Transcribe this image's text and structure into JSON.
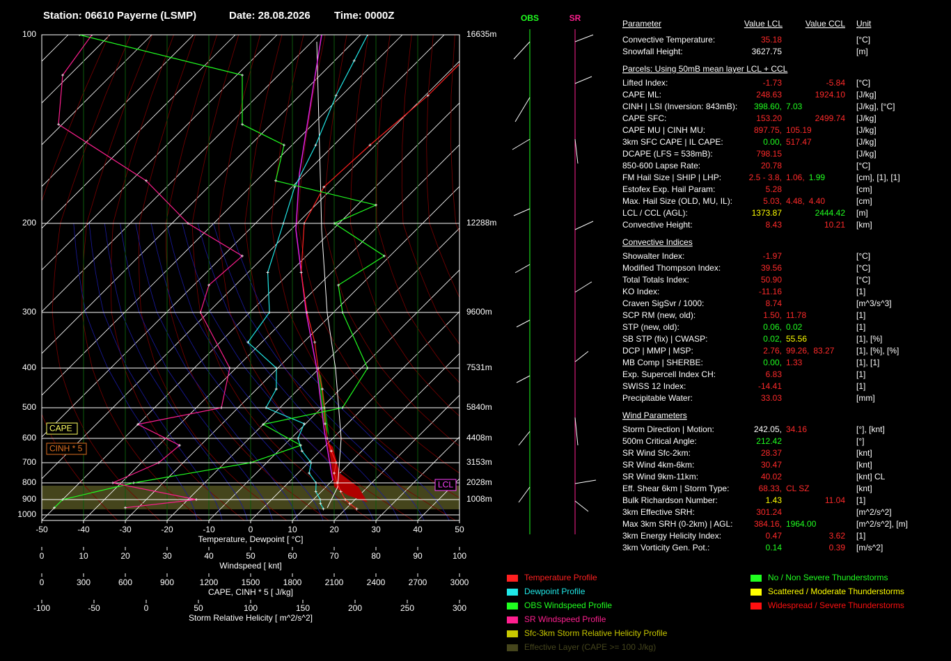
{
  "header": {
    "station": "Station: 06610 Payerne (LSMP)",
    "date": "Date: 28.08.2026",
    "time": "Time: 0000Z"
  },
  "chart_data": {
    "type": "skewt",
    "xlabel": "Temperature, Dewpoint  [ °C]",
    "xlim": [
      -50,
      50
    ],
    "xticks": [
      -50,
      -40,
      -30,
      -20,
      -10,
      0,
      10,
      20,
      30,
      40,
      50
    ],
    "ylim": [
      1000,
      100
    ],
    "yticks": [
      100,
      200,
      300,
      400,
      500,
      600,
      700,
      800,
      900,
      1000
    ],
    "height_labels": [
      {
        "value": 100,
        "label": "16635m"
      },
      {
        "value": 200,
        "label": "12288m"
      },
      {
        "value": 300,
        "label": "9600m"
      },
      {
        "value": 400,
        "label": "7531m"
      },
      {
        "value": 500,
        "label": "5840m"
      },
      {
        "value": 600,
        "label": "4408m"
      },
      {
        "value": 700,
        "label": "3153m"
      },
      {
        "value": 800,
        "label": "2028m"
      },
      {
        "value": 900,
        "label": "1008m"
      }
    ],
    "series": [
      {
        "name": "Temperature Profile",
        "color": "#ff2020",
        "pressure": [
          960,
          925,
          900,
          850,
          800,
          750,
          700,
          650,
          600,
          550,
          500,
          450,
          400,
          350,
          300,
          250,
          200,
          175,
          150,
          125,
          110,
          100
        ],
        "values": [
          24,
          21,
          19,
          16,
          13,
          10,
          8,
          4,
          0,
          -4,
          -8,
          -13,
          -19,
          -26,
          -35,
          -46,
          -57,
          -61,
          -60,
          -58,
          -58,
          -57
        ]
      },
      {
        "name": "Dewpoint Profile",
        "color": "#20e8e8",
        "pressure": [
          960,
          925,
          900,
          850,
          800,
          750,
          700,
          650,
          600,
          550,
          500,
          450,
          400,
          350,
          300,
          250,
          200,
          175,
          150,
          125,
          110,
          100
        ],
        "values": [
          16,
          14,
          13,
          10,
          8,
          4,
          2,
          -3,
          -7,
          -9,
          -22,
          -24,
          -29,
          -42,
          -44,
          -54,
          -62,
          -68,
          -73,
          -80,
          -84,
          -87
        ]
      },
      {
        "name": "OBS Windspeed Profile",
        "color": "#20ff20",
        "axis": "windspeed",
        "pressure": [
          100,
          116,
          139,
          150,
          171,
          187,
          200,
          232,
          265,
          300,
          400,
          500,
          552,
          627,
          700,
          800,
          900,
          952
        ],
        "values": [
          9,
          48,
          48,
          58,
          56,
          80,
          70,
          82,
          71,
          72,
          78,
          72,
          53,
          62,
          50,
          22,
          5,
          3
        ]
      },
      {
        "name": "SR Windspeed Profile",
        "color": "#ff1f8f",
        "axis": "windspeed",
        "pressure": [
          100,
          116,
          139,
          171,
          200,
          232,
          265,
          300,
          400,
          500,
          552,
          627,
          700,
          800,
          900,
          952
        ],
        "values": [
          12,
          5,
          4,
          25,
          35,
          48,
          40,
          38,
          45,
          43,
          23,
          33,
          28,
          17,
          37,
          20
        ]
      }
    ],
    "legend_extra": [
      {
        "name": "Sfc-3km Storm Relative Helicity Profile",
        "color": "#c8c800"
      },
      {
        "name": "Effective Layer (CAPE >= 100 J/kg)",
        "color": "#45451c"
      }
    ],
    "severity_legend": [
      {
        "name": "No / Non Severe Thunderstorms",
        "color": "#20ff20"
      },
      {
        "name": "Scattered / Moderate Thunderstorms",
        "color": "#ffff00"
      },
      {
        "name": "Widespread / Severe Thunderstorms",
        "color": "#ff1010"
      }
    ],
    "windspeed_axis": {
      "label": "Windspeed  [ knt]",
      "lim": [
        0,
        100
      ],
      "ticks": [
        0,
        10,
        20,
        30,
        40,
        50,
        60,
        70,
        80,
        90,
        100
      ]
    },
    "cape_axis": {
      "label": "CAPE, CINH * 5  [ J/kg]",
      "lim": [
        0,
        3000
      ],
      "ticks": [
        0,
        300,
        600,
        900,
        1200,
        1500,
        1800,
        2100,
        2400,
        2700,
        3000
      ]
    },
    "srh_axis": {
      "label": "Storm Relative Helicity  [ m^2/s^2]",
      "lim": [
        -100,
        300
      ],
      "ticks": [
        -100,
        -50,
        0,
        50,
        100,
        150,
        200,
        250,
        300
      ]
    },
    "annotations": {
      "cape": "CAPE",
      "cinh": "CINH * 5",
      "lcl": "LCL"
    }
  },
  "barbs": {
    "obs": "OBS",
    "sr": "SR"
  },
  "table": {
    "header": [
      "Parameter",
      "Value LCL",
      "Value CCL",
      "Unit"
    ],
    "sections": [
      {
        "rows": [
          {
            "label": "Convective Temperature:",
            "lcl": [
              {
                "text": "35.18",
                "color": "#ff2a2a"
              }
            ],
            "unit": "[°C]"
          },
          {
            "label": "Snowfall Height:",
            "lcl": [
              {
                "text": "3627.75",
                "color": "#ffffff"
              }
            ],
            "unit": "[m]"
          }
        ]
      },
      {
        "title": "Parcels: Using 50mB mean layer LCL + CCL",
        "rows": [
          {
            "label": "Lifted Index:",
            "lcl": [
              {
                "text": "-1.73",
                "color": "#ff2a2a"
              }
            ],
            "ccl": [
              {
                "text": "-5.84",
                "color": "#ff2a2a"
              }
            ],
            "unit": "[°C]"
          },
          {
            "label": "CAPE ML:",
            "lcl": [
              {
                "text": "248.63",
                "color": "#ff2a2a"
              }
            ],
            "ccl": [
              {
                "text": "1924.10",
                "color": "#ff2a2a"
              }
            ],
            "unit": "[J/kg]"
          },
          {
            "label": "CINH | LSI (Inversion: 843mB):",
            "lcl": [
              {
                "text": "398.60,",
                "color": "#20ff20"
              },
              {
                "text": "7.03",
                "color": "#20ff20"
              }
            ],
            "unit": "[J/kg], [°C]"
          },
          {
            "label": "CAPE SFC:",
            "lcl": [
              {
                "text": "153.20",
                "color": "#ff2a2a"
              }
            ],
            "ccl": [
              {
                "text": "2499.74",
                "color": "#ff2a2a"
              }
            ],
            "unit": "[J/kg]"
          },
          {
            "label": "CAPE MU | CINH MU:",
            "lcl": [
              {
                "text": "897.75,",
                "color": "#ff2a2a"
              },
              {
                "text": "105.19",
                "color": "#ff2a2a"
              }
            ],
            "unit": "[J/kg]"
          },
          {
            "label": "3km SFC CAPE | IL CAPE:",
            "lcl": [
              {
                "text": "0.00,",
                "color": "#20ff20"
              },
              {
                "text": "517.47",
                "color": "#ff2a2a"
              }
            ],
            "unit": "[J/kg]"
          },
          {
            "label": "DCAPE (LFS = 538mB):",
            "lcl": [
              {
                "text": "798.15",
                "color": "#ff2a2a"
              }
            ],
            "unit": "[J/kg]"
          },
          {
            "label": "850-600 Lapse Rate:",
            "lcl": [
              {
                "text": "20.78",
                "color": "#ff2a2a"
              }
            ],
            "unit": "[°C]"
          },
          {
            "label": "FM Hail Size | SHIP | LHP:",
            "lcl": [
              {
                "text": "2.5 - 3.8,",
                "color": "#ff2a2a"
              },
              {
                "text": "1.06,",
                "color": "#ff2a2a"
              },
              {
                "text": "1.99",
                "color": "#20ff20"
              }
            ],
            "unit": "[cm], [1], [1]"
          },
          {
            "label": "Estofex Exp. Hail Param:",
            "lcl": [
              {
                "text": "5.28",
                "color": "#ff2a2a"
              }
            ],
            "unit": "[cm]"
          },
          {
            "label": "Max. Hail Size (OLD, MU, IL):",
            "lcl": [
              {
                "text": "5.03,",
                "color": "#ff2a2a"
              },
              {
                "text": "4.48,",
                "color": "#ff2a2a"
              },
              {
                "text": "4.40",
                "color": "#ff2a2a"
              }
            ],
            "unit": "[cm]"
          },
          {
            "label": "LCL / CCL (AGL):",
            "lcl": [
              {
                "text": "1373.87",
                "color": "#ffff00"
              }
            ],
            "ccl": [
              {
                "text": "2444.42",
                "color": "#20ff20"
              }
            ],
            "unit": "[m]"
          },
          {
            "label": "Convective Height:",
            "lcl": [
              {
                "text": "8.43",
                "color": "#ff2a2a"
              }
            ],
            "ccl": [
              {
                "text": "10.21",
                "color": "#ff2a2a"
              }
            ],
            "unit": "[km]"
          }
        ]
      },
      {
        "title": "Convective Indices",
        "rows": [
          {
            "label": "Showalter Index:",
            "lcl": [
              {
                "text": "-1.97",
                "color": "#ff2a2a"
              }
            ],
            "unit": "[°C]"
          },
          {
            "label": "Modified Thompson Index:",
            "lcl": [
              {
                "text": "39.56",
                "color": "#ff2a2a"
              }
            ],
            "unit": "[°C]"
          },
          {
            "label": "Total Totals Index:",
            "lcl": [
              {
                "text": "50.90",
                "color": "#ff2a2a"
              }
            ],
            "unit": "[°C]"
          },
          {
            "label": "KO Index:",
            "lcl": [
              {
                "text": "-11.16",
                "color": "#ff2a2a"
              }
            ],
            "unit": "[1]"
          },
          {
            "label": "Craven SigSvr / 1000:",
            "lcl": [
              {
                "text": "8.74",
                "color": "#ff2a2a"
              }
            ],
            "unit": "[m^3/s^3]"
          },
          {
            "label": "SCP RM (new, old):",
            "lcl": [
              {
                "text": "1.50,",
                "color": "#ff2a2a"
              },
              {
                "text": "11.78",
                "color": "#ff2a2a"
              }
            ],
            "unit": "[1]"
          },
          {
            "label": "STP (new, old):",
            "lcl": [
              {
                "text": "0.06,",
                "color": "#20ff20"
              },
              {
                "text": "0.02",
                "color": "#20ff20"
              }
            ],
            "unit": "[1]"
          },
          {
            "label": "SB STP (fix) | CWASP:",
            "lcl": [
              {
                "text": "0.02,",
                "color": "#20ff20"
              },
              {
                "text": "55.56",
                "color": "#ffff00"
              }
            ],
            "unit": "[1], [%]"
          },
          {
            "label": "DCP | MMP | MSP:",
            "lcl": [
              {
                "text": "2.76,",
                "color": "#ff2a2a"
              },
              {
                "text": "99.26,",
                "color": "#ff2a2a"
              },
              {
                "text": "83.27",
                "color": "#ff2a2a"
              }
            ],
            "unit": "[1], [%], [%]"
          },
          {
            "label": "MB Comp | SHERBE:",
            "lcl": [
              {
                "text": "0.00,",
                "color": "#20ff20"
              },
              {
                "text": "1.33",
                "color": "#ff2a2a"
              }
            ],
            "unit": "[1], [1]"
          },
          {
            "label": "Exp. Supercell Index CH:",
            "lcl": [
              {
                "text": "6.83",
                "color": "#ff2a2a"
              }
            ],
            "unit": "[1]"
          },
          {
            "label": "SWISS 12 Index:",
            "lcl": [
              {
                "text": "-14.41",
                "color": "#ff2a2a"
              }
            ],
            "unit": "[1]"
          },
          {
            "label": "Precipitable Water:",
            "lcl": [
              {
                "text": "33.03",
                "color": "#ff2a2a"
              }
            ],
            "unit": "[mm]"
          }
        ]
      },
      {
        "title": "Wind Parameters",
        "rows": [
          {
            "label": "Storm Direction | Motion:",
            "lcl": [
              {
                "text": "242.05,",
                "color": "#ffffff"
              },
              {
                "text": "34.16",
                "color": "#ff2a2a"
              }
            ],
            "unit": "[°], [knt]"
          },
          {
            "label": "500m Critical Angle:",
            "lcl": [
              {
                "text": "212.42",
                "color": "#20ff20"
              }
            ],
            "unit": "[°]"
          },
          {
            "label": "SR Wind Sfc-2km:",
            "lcl": [
              {
                "text": "28.37",
                "color": "#ff2a2a"
              }
            ],
            "unit": "[knt]"
          },
          {
            "label": "SR Wind 4km-6km:",
            "lcl": [
              {
                "text": "30.47",
                "color": "#ff2a2a"
              }
            ],
            "unit": "[knt]"
          },
          {
            "label": "SR Wind 9km-11km:",
            "lcl": [
              {
                "text": "40.02",
                "color": "#ff2a2a"
              }
            ],
            "unit": "[knt] CL"
          },
          {
            "label": "Eff. Shear 6km | Storm Type:",
            "lcl": [
              {
                "text": "68.33,",
                "color": "#ff2a2a"
              },
              {
                "text": "CL SZ",
                "color": "#ff2a2a"
              }
            ],
            "unit": "[knt]"
          },
          {
            "label": "Bulk Richardson Number:",
            "lcl": [
              {
                "text": "1.43",
                "color": "#ffff00"
              }
            ],
            "ccl": [
              {
                "text": "11.04",
                "color": "#ff2a2a"
              }
            ],
            "unit": "[1]"
          },
          {
            "label": "3km Effective SRH:",
            "lcl": [
              {
                "text": "301.24",
                "color": "#ff2a2a"
              }
            ],
            "unit": "[m^2/s^2]"
          },
          {
            "label": "Max 3km SRH (0-2km) | AGL:",
            "lcl": [
              {
                "text": "384.16,",
                "color": "#ff2a2a"
              },
              {
                "text": "1964.00",
                "color": "#20ff20"
              }
            ],
            "unit": "[m^2/s^2], [m]"
          },
          {
            "label": "3km Energy Helicity Index:",
            "lcl": [
              {
                "text": "0.47",
                "color": "#ff2a2a"
              }
            ],
            "ccl": [
              {
                "text": "3.62",
                "color": "#ff2a2a"
              }
            ],
            "unit": "[1]"
          },
          {
            "label": "3km Vorticity Gen. Pot.:",
            "lcl": [
              {
                "text": "0.14",
                "color": "#20ff20"
              }
            ],
            "ccl": [
              {
                "text": "0.39",
                "color": "#ff2a2a"
              }
            ],
            "unit": "[m/s^2]"
          }
        ]
      }
    ]
  }
}
